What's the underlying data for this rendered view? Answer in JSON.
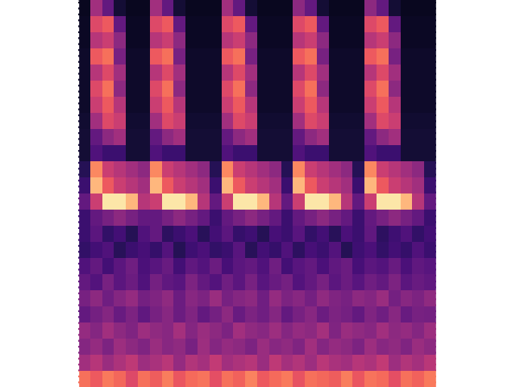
{
  "chart_data": {
    "type": "heatmap",
    "color": "magma",
    "tick_labels": false,
    "clim": [
      0,
      1
    ],
    "cells": [
      [
        0.06,
        0.45,
        0.3,
        0.1,
        0.06,
        0.06,
        0.45,
        0.3,
        0.1,
        0.06,
        0.06,
        0.06,
        0.45,
        0.3,
        0.1,
        0.06,
        0.06,
        0.06,
        0.4,
        0.3,
        0.1,
        0.06,
        0.06,
        0.06,
        0.4,
        0.3,
        0.1,
        0.06,
        0.06,
        0.06
      ],
      [
        0.07,
        0.6,
        0.65,
        0.3,
        0.07,
        0.07,
        0.6,
        0.65,
        0.3,
        0.07,
        0.07,
        0.07,
        0.6,
        0.65,
        0.3,
        0.07,
        0.07,
        0.07,
        0.6,
        0.65,
        0.3,
        0.07,
        0.07,
        0.07,
        0.6,
        0.65,
        0.3,
        0.07,
        0.07,
        0.07
      ],
      [
        0.07,
        0.5,
        0.55,
        0.4,
        0.07,
        0.07,
        0.5,
        0.55,
        0.4,
        0.07,
        0.07,
        0.07,
        0.5,
        0.55,
        0.4,
        0.07,
        0.07,
        0.07,
        0.5,
        0.55,
        0.4,
        0.07,
        0.07,
        0.07,
        0.5,
        0.55,
        0.4,
        0.07,
        0.07,
        0.07
      ],
      [
        0.08,
        0.65,
        0.7,
        0.35,
        0.08,
        0.08,
        0.65,
        0.7,
        0.35,
        0.08,
        0.08,
        0.08,
        0.65,
        0.7,
        0.35,
        0.08,
        0.08,
        0.08,
        0.65,
        0.7,
        0.35,
        0.08,
        0.08,
        0.08,
        0.65,
        0.7,
        0.35,
        0.08,
        0.08,
        0.08
      ],
      [
        0.08,
        0.5,
        0.6,
        0.45,
        0.08,
        0.08,
        0.5,
        0.6,
        0.45,
        0.08,
        0.08,
        0.08,
        0.5,
        0.6,
        0.45,
        0.08,
        0.08,
        0.08,
        0.5,
        0.6,
        0.45,
        0.08,
        0.08,
        0.08,
        0.5,
        0.6,
        0.45,
        0.08,
        0.08,
        0.08
      ],
      [
        0.08,
        0.6,
        0.7,
        0.4,
        0.08,
        0.08,
        0.6,
        0.7,
        0.4,
        0.08,
        0.08,
        0.08,
        0.6,
        0.7,
        0.4,
        0.08,
        0.08,
        0.08,
        0.6,
        0.7,
        0.4,
        0.08,
        0.08,
        0.08,
        0.6,
        0.7,
        0.4,
        0.08,
        0.08,
        0.08
      ],
      [
        0.08,
        0.55,
        0.65,
        0.5,
        0.08,
        0.08,
        0.55,
        0.65,
        0.5,
        0.08,
        0.08,
        0.08,
        0.55,
        0.65,
        0.5,
        0.08,
        0.08,
        0.08,
        0.55,
        0.65,
        0.5,
        0.08,
        0.08,
        0.08,
        0.55,
        0.65,
        0.5,
        0.08,
        0.08,
        0.08
      ],
      [
        0.09,
        0.45,
        0.6,
        0.55,
        0.09,
        0.09,
        0.45,
        0.6,
        0.55,
        0.09,
        0.09,
        0.09,
        0.45,
        0.6,
        0.55,
        0.09,
        0.09,
        0.09,
        0.45,
        0.6,
        0.55,
        0.09,
        0.09,
        0.09,
        0.45,
        0.6,
        0.55,
        0.09,
        0.09,
        0.09
      ],
      [
        0.1,
        0.3,
        0.4,
        0.45,
        0.1,
        0.1,
        0.3,
        0.4,
        0.45,
        0.1,
        0.1,
        0.1,
        0.3,
        0.4,
        0.45,
        0.1,
        0.1,
        0.1,
        0.3,
        0.4,
        0.45,
        0.1,
        0.1,
        0.1,
        0.3,
        0.4,
        0.45,
        0.1,
        0.1,
        0.1
      ],
      [
        0.1,
        0.25,
        0.2,
        0.2,
        0.1,
        0.1,
        0.25,
        0.2,
        0.2,
        0.1,
        0.1,
        0.1,
        0.25,
        0.2,
        0.2,
        0.1,
        0.1,
        0.1,
        0.25,
        0.2,
        0.2,
        0.1,
        0.1,
        0.1,
        0.25,
        0.2,
        0.2,
        0.1,
        0.1,
        0.1
      ],
      [
        0.15,
        0.75,
        0.55,
        0.5,
        0.45,
        0.4,
        0.75,
        0.55,
        0.5,
        0.45,
        0.4,
        0.15,
        0.75,
        0.55,
        0.5,
        0.45,
        0.4,
        0.15,
        0.75,
        0.55,
        0.5,
        0.45,
        0.4,
        0.15,
        0.75,
        0.55,
        0.5,
        0.45,
        0.4,
        0.15
      ],
      [
        0.2,
        0.85,
        0.65,
        0.55,
        0.5,
        0.45,
        0.85,
        0.65,
        0.55,
        0.5,
        0.45,
        0.2,
        0.85,
        0.65,
        0.55,
        0.5,
        0.45,
        0.2,
        0.85,
        0.65,
        0.55,
        0.5,
        0.45,
        0.2,
        0.85,
        0.65,
        0.55,
        0.5,
        0.45,
        0.2
      ],
      [
        0.3,
        0.55,
        0.95,
        0.95,
        0.85,
        0.5,
        0.55,
        0.95,
        0.95,
        0.85,
        0.5,
        0.3,
        0.55,
        0.95,
        0.95,
        0.85,
        0.5,
        0.3,
        0.55,
        0.95,
        0.95,
        0.85,
        0.5,
        0.3,
        0.55,
        0.95,
        0.95,
        0.85,
        0.5,
        0.3
      ],
      [
        0.2,
        0.3,
        0.35,
        0.4,
        0.35,
        0.3,
        0.3,
        0.35,
        0.4,
        0.35,
        0.3,
        0.2,
        0.3,
        0.35,
        0.4,
        0.35,
        0.3,
        0.2,
        0.3,
        0.35,
        0.4,
        0.35,
        0.3,
        0.2,
        0.3,
        0.35,
        0.4,
        0.35,
        0.3,
        0.2
      ],
      [
        0.2,
        0.28,
        0.18,
        0.22,
        0.15,
        0.25,
        0.3,
        0.17,
        0.2,
        0.24,
        0.16,
        0.22,
        0.28,
        0.19,
        0.21,
        0.15,
        0.23,
        0.2,
        0.27,
        0.18,
        0.22,
        0.16,
        0.24,
        0.2,
        0.29,
        0.17,
        0.21,
        0.25,
        0.18,
        0.22
      ],
      [
        0.18,
        0.22,
        0.25,
        0.16,
        0.2,
        0.23,
        0.19,
        0.26,
        0.15,
        0.21,
        0.24,
        0.18,
        0.2,
        0.27,
        0.16,
        0.22,
        0.19,
        0.25,
        0.17,
        0.23,
        0.2,
        0.26,
        0.15,
        0.21,
        0.24,
        0.18,
        0.22,
        0.19,
        0.25,
        0.2
      ],
      [
        0.25,
        0.3,
        0.22,
        0.28,
        0.33,
        0.24,
        0.27,
        0.31,
        0.22,
        0.29,
        0.26,
        0.32,
        0.23,
        0.28,
        0.3,
        0.25,
        0.33,
        0.22,
        0.27,
        0.3,
        0.24,
        0.29,
        0.32,
        0.23,
        0.28,
        0.26,
        0.31,
        0.24,
        0.29,
        0.27
      ],
      [
        0.3,
        0.26,
        0.35,
        0.28,
        0.32,
        0.25,
        0.34,
        0.29,
        0.27,
        0.36,
        0.3,
        0.26,
        0.33,
        0.28,
        0.35,
        0.27,
        0.31,
        0.34,
        0.26,
        0.3,
        0.35,
        0.28,
        0.32,
        0.27,
        0.33,
        0.3,
        0.36,
        0.28,
        0.31,
        0.29
      ],
      [
        0.35,
        0.4,
        0.33,
        0.38,
        0.42,
        0.34,
        0.37,
        0.41,
        0.32,
        0.39,
        0.36,
        0.43,
        0.35,
        0.38,
        0.4,
        0.33,
        0.42,
        0.36,
        0.39,
        0.34,
        0.41,
        0.37,
        0.35,
        0.4,
        0.38,
        0.43,
        0.34,
        0.39,
        0.36,
        0.41
      ],
      [
        0.3,
        0.34,
        0.38,
        0.31,
        0.36,
        0.29,
        0.35,
        0.39,
        0.32,
        0.37,
        0.3,
        0.34,
        0.4,
        0.31,
        0.36,
        0.33,
        0.38,
        0.3,
        0.35,
        0.39,
        0.32,
        0.36,
        0.34,
        0.3,
        0.37,
        0.33,
        0.39,
        0.31,
        0.35,
        0.34
      ],
      [
        0.42,
        0.38,
        0.45,
        0.4,
        0.37,
        0.44,
        0.41,
        0.39,
        0.46,
        0.38,
        0.43,
        0.4,
        0.36,
        0.45,
        0.41,
        0.39,
        0.44,
        0.38,
        0.42,
        0.4,
        0.46,
        0.37,
        0.43,
        0.41,
        0.39,
        0.45,
        0.4,
        0.42,
        0.38,
        0.44
      ],
      [
        0.38,
        0.42,
        0.36,
        0.44,
        0.4,
        0.37,
        0.43,
        0.39,
        0.41,
        0.35,
        0.44,
        0.38,
        0.42,
        0.4,
        0.36,
        0.43,
        0.39,
        0.41,
        0.37,
        0.45,
        0.38,
        0.42,
        0.4,
        0.36,
        0.44,
        0.39,
        0.41,
        0.37,
        0.43,
        0.4
      ],
      [
        0.45,
        0.5,
        0.43,
        0.48,
        0.52,
        0.44,
        0.47,
        0.51,
        0.42,
        0.49,
        0.46,
        0.53,
        0.45,
        0.48,
        0.5,
        0.43,
        0.52,
        0.46,
        0.49,
        0.44,
        0.51,
        0.47,
        0.45,
        0.5,
        0.48,
        0.53,
        0.44,
        0.49,
        0.46,
        0.51
      ],
      [
        0.7,
        0.65,
        0.72,
        0.68,
        0.6,
        0.7,
        0.66,
        0.73,
        0.64,
        0.69,
        0.71,
        0.62,
        0.7,
        0.67,
        0.74,
        0.65,
        0.69,
        0.72,
        0.63,
        0.7,
        0.68,
        0.66,
        0.73,
        0.64,
        0.71,
        0.69,
        0.62,
        0.7,
        0.67,
        0.72
      ]
    ]
  }
}
